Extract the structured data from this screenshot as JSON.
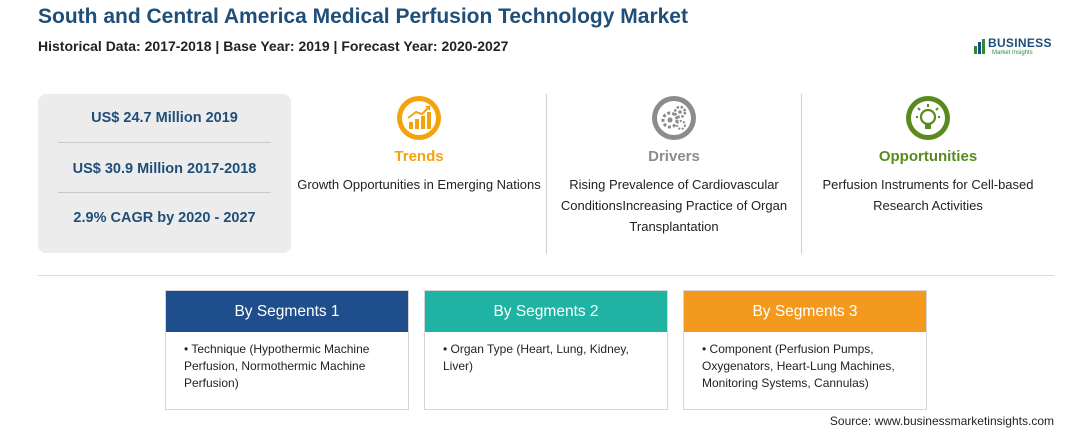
{
  "header": {
    "title": "South and Central America Medical Perfusion Technology Market",
    "subtitle": "Historical Data: 2017-2018 | Base Year: 2019 | Forecast Year: 2020-2027"
  },
  "logo": {
    "word": "BUSINESS",
    "tagline": "Market Insights"
  },
  "stats": [
    "US$ 24.7 Million 2019",
    "US$ 30.9 Million 2017-2018",
    "2.9% CAGR by 2020 - 2027"
  ],
  "columns": {
    "trends": {
      "heading": "Trends",
      "text": "Growth Opportunities in Emerging Nations",
      "color": "#f4a30c",
      "icon": "trend-chart-icon"
    },
    "drivers": {
      "heading": "Drivers",
      "text": "Rising Prevalence of Cardiovascular ConditionsIncreasing Practice of Organ Transplantation",
      "color": "#8c8c8c",
      "icon": "gears-icon"
    },
    "opportunities": {
      "heading": "Opportunities",
      "text": "Perfusion Instruments for Cell-based Research Activities",
      "color": "#5a8a1e",
      "icon": "lightbulb-icon"
    }
  },
  "segments": [
    {
      "title": "By Segments 1",
      "color": "#1f4e8c",
      "item": "Technique (Hypothermic Machine Perfusion, Normothermic Machine Perfusion)"
    },
    {
      "title": "By Segments 2",
      "color": "#1fb3a4",
      "item": "Organ Type (Heart, Lung, Kidney, Liver)"
    },
    {
      "title": "By Segments 3",
      "color": "#f39a1e",
      "item": "Component (Perfusion Pumps, Oxygenators, Heart-Lung Machines, Monitoring Systems, Cannulas)"
    }
  ],
  "source": "Source: www.businessmarketinsights.com"
}
